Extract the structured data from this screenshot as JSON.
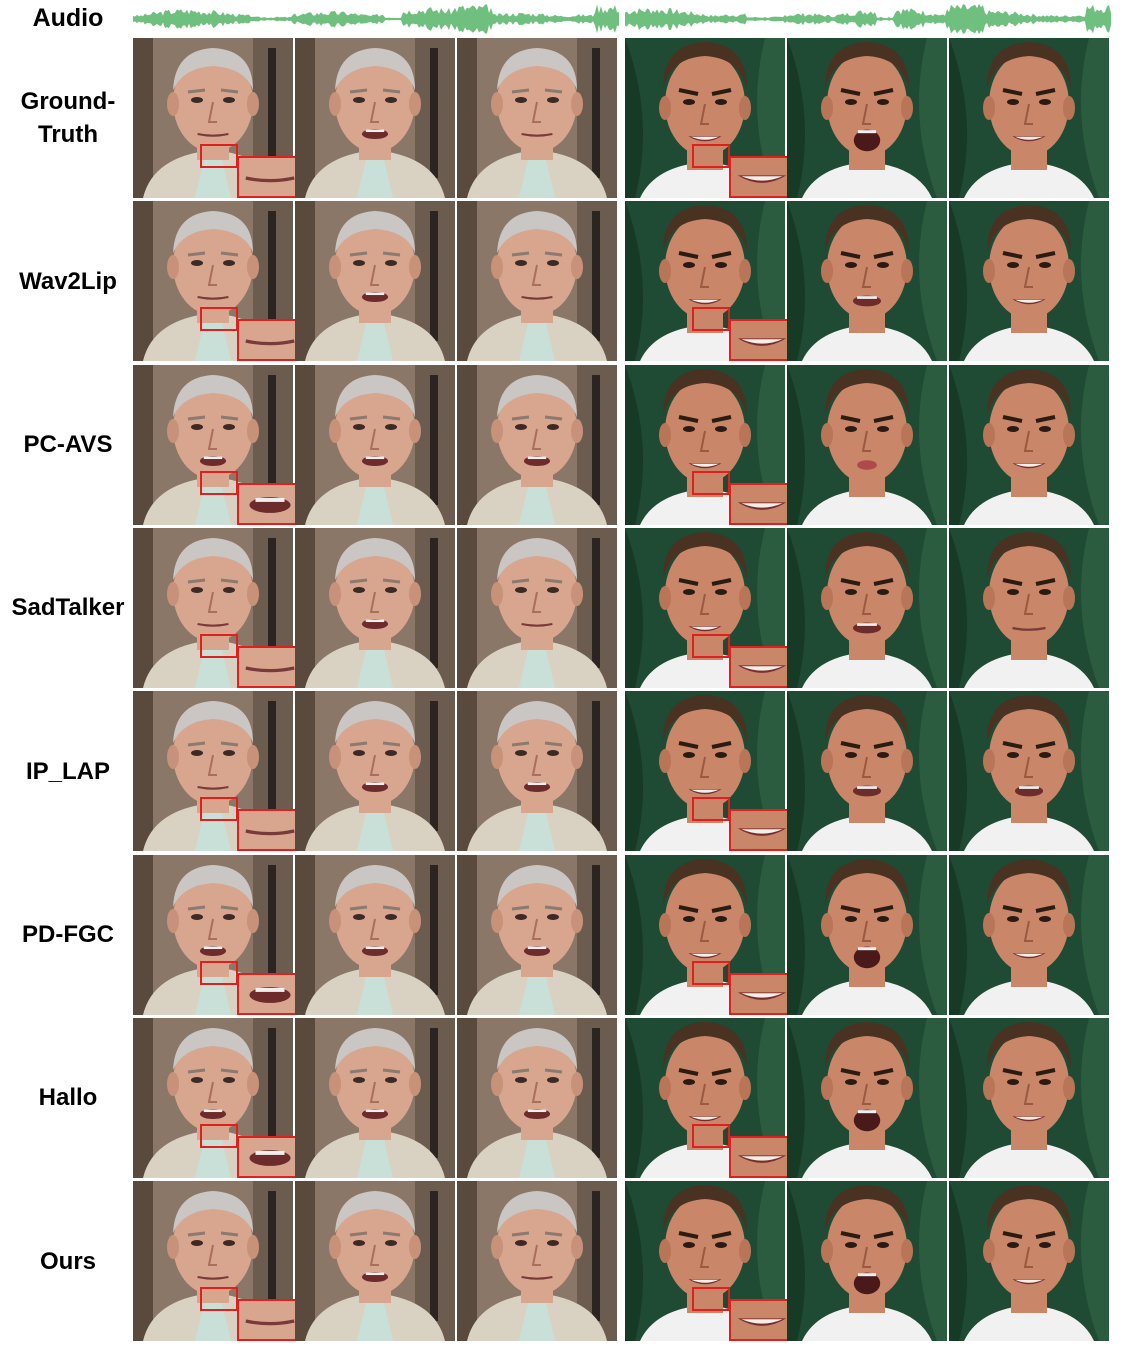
{
  "audio_label": "Audio",
  "waveform_color": "#6fbf7f",
  "subjects": [
    {
      "name": "speaker-a",
      "background": "office",
      "skin": "#d8a58e",
      "hair": "#c9c6c4",
      "suit": "#d9d2c3",
      "shirt": "#c8e0d8"
    },
    {
      "name": "speaker-b",
      "background": "green-curtain",
      "skin": "#c98669",
      "hair": "#4a3222",
      "shirt": "#f1f1f1"
    }
  ],
  "rows": [
    {
      "label": "Ground-\nTruth",
      "mouths_a": [
        "closed",
        "talk",
        "closed"
      ],
      "mouths_b": [
        "smile",
        "open",
        "teeth"
      ]
    },
    {
      "label": "Wav2Lip",
      "mouths_a": [
        "closed",
        "talk",
        "closed"
      ],
      "mouths_b": [
        "smile",
        "talk",
        "smile"
      ]
    },
    {
      "label": "PC-AVS",
      "mouths_a": [
        "talk",
        "talk",
        "talk"
      ],
      "mouths_b": [
        "smile",
        "pout",
        "smile"
      ]
    },
    {
      "label": "SadTalker",
      "mouths_a": [
        "closed",
        "talk",
        "closed"
      ],
      "mouths_b": [
        "smile",
        "talk",
        "closed"
      ]
    },
    {
      "label": "IP_LAP",
      "mouths_a": [
        "closed",
        "talk",
        "talk"
      ],
      "mouths_b": [
        "smile",
        "talk",
        "talk"
      ]
    },
    {
      "label": "PD-FGC",
      "mouths_a": [
        "talk",
        "talk",
        "talk"
      ],
      "mouths_b": [
        "smile",
        "open",
        "smile"
      ]
    },
    {
      "label": "Hallo",
      "mouths_a": [
        "talk",
        "talk",
        "talk"
      ],
      "mouths_b": [
        "smile",
        "open",
        "teeth"
      ]
    },
    {
      "label": "Ours",
      "mouths_a": [
        "closed",
        "talk",
        "closed"
      ],
      "mouths_b": [
        "smile",
        "open",
        "teeth"
      ]
    }
  ],
  "highlight_color": "#e0201e"
}
